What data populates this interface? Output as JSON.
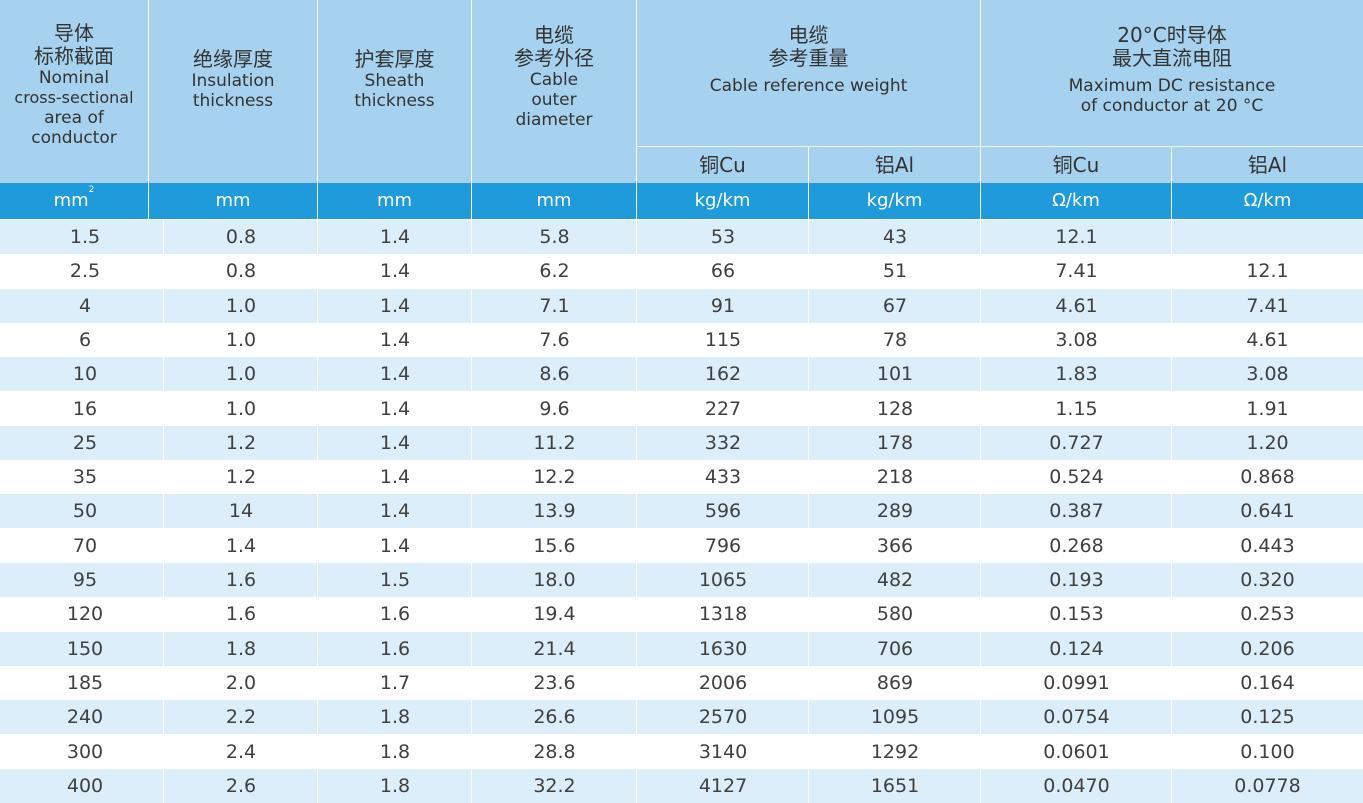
{
  "header": {
    "col1": {
      "zh1": "导体",
      "zh2": "标称截面",
      "en1": "Nominal",
      "en2": "cross-sectional",
      "en3": "area of",
      "en4": "conductor"
    },
    "col2": {
      "zh1": "绝缘厚度",
      "en1": "Insulation",
      "en2": "thickness"
    },
    "col3": {
      "zh1": "护套厚度",
      "en1": "Sheath",
      "en2": "thickness"
    },
    "col4": {
      "zh1": "电缆",
      "zh2": "参考外径",
      "en1": "Cable",
      "en2": "outer",
      "en3": "diameter"
    },
    "weight": {
      "zh1": "电缆",
      "zh2": "参考重量",
      "en1": "Cable reference weight",
      "cu": "铜Cu",
      "al": "铝Al"
    },
    "resistance": {
      "zh1": "20°C时导体",
      "zh2": "最大直流电阻",
      "en1": "Maximum DC resistance",
      "en2": "of conductor at 20 °C",
      "cu": "铜Cu",
      "al": "铝Al"
    }
  },
  "units": {
    "area": "mm",
    "area_sup": "2",
    "insulation": "mm",
    "sheath": "mm",
    "diameter": "mm",
    "weight_cu": "kg/km",
    "weight_al": "kg/km",
    "res_cu": "Ω/km",
    "res_al": "Ω/km"
  },
  "rows": [
    [
      "1.5",
      "0.8",
      "1.4",
      "5.8",
      "53",
      "43",
      "12.1",
      ""
    ],
    [
      "2.5",
      "0.8",
      "1.4",
      "6.2",
      "66",
      "51",
      "7.41",
      "12.1"
    ],
    [
      "4",
      "1.0",
      "1.4",
      "7.1",
      "91",
      "67",
      "4.61",
      "7.41"
    ],
    [
      "6",
      "1.0",
      "1.4",
      "7.6",
      "115",
      "78",
      "3.08",
      "4.61"
    ],
    [
      "10",
      "1.0",
      "1.4",
      "8.6",
      "162",
      "101",
      "1.83",
      "3.08"
    ],
    [
      "16",
      "1.0",
      "1.4",
      "9.6",
      "227",
      "128",
      "1.15",
      "1.91"
    ],
    [
      "25",
      "1.2",
      "1.4",
      "11.2",
      "332",
      "178",
      "0.727",
      "1.20"
    ],
    [
      "35",
      "1.2",
      "1.4",
      "12.2",
      "433",
      "218",
      "0.524",
      "0.868"
    ],
    [
      "50",
      "14",
      "1.4",
      "13.9",
      "596",
      "289",
      "0.387",
      "0.641"
    ],
    [
      "70",
      "1.4",
      "1.4",
      "15.6",
      "796",
      "366",
      "0.268",
      "0.443"
    ],
    [
      "95",
      "1.6",
      "1.5",
      "18.0",
      "1065",
      "482",
      "0.193",
      "0.320"
    ],
    [
      "120",
      "1.6",
      "1.6",
      "19.4",
      "1318",
      "580",
      "0.153",
      "0.253"
    ],
    [
      "150",
      "1.8",
      "1.6",
      "21.4",
      "1630",
      "706",
      "0.124",
      "0.206"
    ],
    [
      "185",
      "2.0",
      "1.7",
      "23.6",
      "2006",
      "869",
      "0.0991",
      "0.164"
    ],
    [
      "240",
      "2.2",
      "1.8",
      "26.6",
      "2570",
      "1095",
      "0.0754",
      "0.125"
    ],
    [
      "300",
      "2.4",
      "1.8",
      "28.8",
      "3140",
      "1292",
      "0.0601",
      "0.100"
    ],
    [
      "400",
      "2.6",
      "1.8",
      "32.2",
      "4127",
      "1651",
      "0.0470",
      "0.0778"
    ]
  ],
  "colors": {
    "header_bg": "#a6d2ef",
    "unit_bg": "#1f9bdc",
    "stripe": "#dbeef9",
    "text": "#404040"
  }
}
